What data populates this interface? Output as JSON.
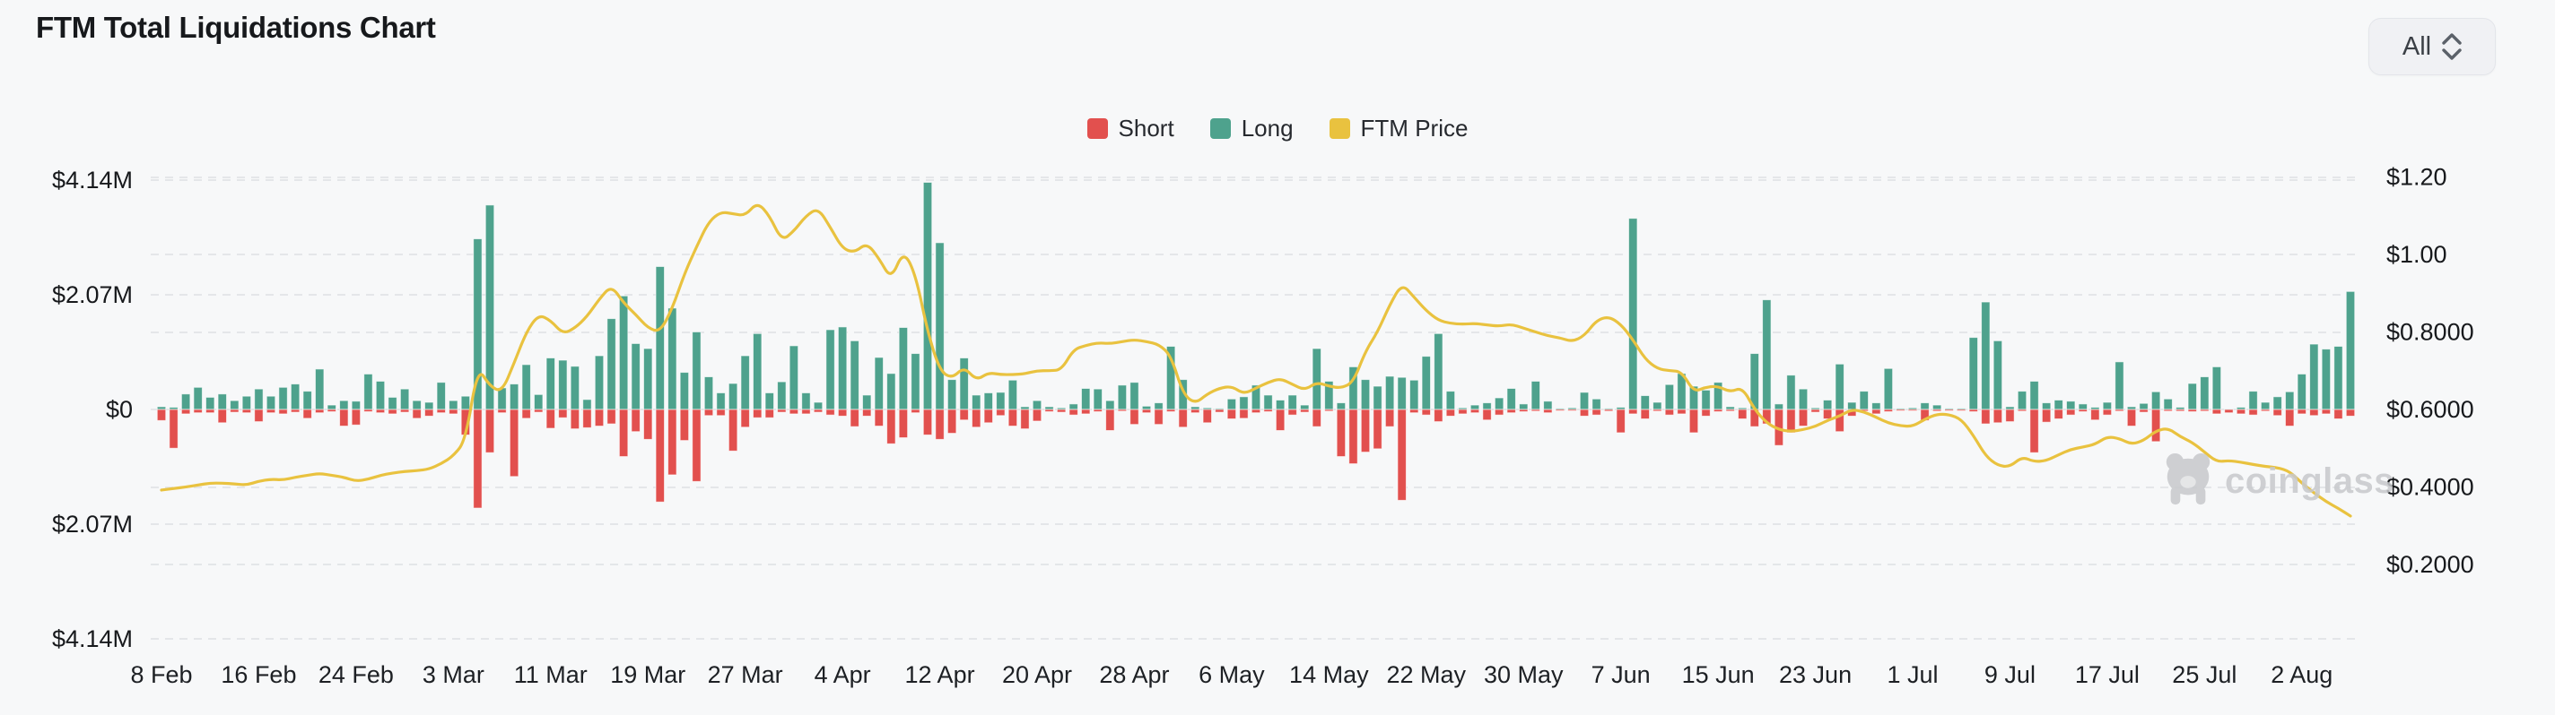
{
  "header": {
    "title": "FTM Total Liquidations Chart",
    "range_selector": {
      "value": "All"
    }
  },
  "legend": [
    {
      "label": "Short",
      "color": "#e2504e"
    },
    {
      "label": "Long",
      "color": "#4ea28d"
    },
    {
      "label": "FTM Price",
      "color": "#e9c23f"
    }
  ],
  "watermark": {
    "text": "coinglass"
  },
  "chart_data": {
    "type": "bar+line",
    "title": "FTM Total Liquidations Chart",
    "x_tick_labels": [
      "8 Feb",
      "16 Feb",
      "24 Feb",
      "3 Mar",
      "11 Mar",
      "19 Mar",
      "27 Mar",
      "4 Apr",
      "12 Apr",
      "20 Apr",
      "28 Apr",
      "6 May",
      "14 May",
      "22 May",
      "30 May",
      "7 Jun",
      "15 Jun",
      "23 Jun",
      "1 Jul",
      "9 Jul",
      "17 Jul",
      "25 Jul",
      "2 Aug"
    ],
    "x_tick_every": 8,
    "left_axis": {
      "unit": "USD liquidations",
      "ticks": [
        {
          "label": "$4.14M",
          "value": 4.14
        },
        {
          "label": "$2.07M",
          "value": 2.07
        },
        {
          "label": "$0",
          "value": 0
        },
        {
          "label": "$2.07M",
          "value": -2.07
        },
        {
          "label": "$4.14M",
          "value": -4.14
        }
      ]
    },
    "right_axis": {
      "unit": "FTM price USD",
      "ticks": [
        {
          "label": "$1.20",
          "value": 1.2
        },
        {
          "label": "$1.00",
          "value": 1.0
        },
        {
          "label": "$0.8000",
          "value": 0.8
        },
        {
          "label": "$0.6000",
          "value": 0.6
        },
        {
          "label": "$0.4000",
          "value": 0.4
        },
        {
          "label": "$0.2000",
          "value": 0.2
        }
      ]
    },
    "grid": "dashed horizontal",
    "legend_position": "top-center",
    "series": [
      {
        "name": "Long",
        "type": "bar",
        "direction": "up",
        "color": "#4ea28d",
        "unit": "$M",
        "values": [
          0.05,
          0.04,
          0.28,
          0.4,
          0.22,
          0.28,
          0.16,
          0.24,
          0.37,
          0.24,
          0.4,
          0.46,
          0.33,
          0.73,
          0.08,
          0.16,
          0.15,
          0.64,
          0.51,
          0.22,
          0.37,
          0.16,
          0.13,
          0.49,
          0.16,
          0.24,
          3.08,
          3.69,
          0.39,
          0.46,
          0.81,
          0.27,
          0.93,
          0.89,
          0.78,
          0.18,
          0.97,
          1.64,
          2.05,
          1.19,
          1.1,
          2.58,
          1.83,
          0.67,
          1.4,
          0.59,
          0.3,
          0.47,
          0.97,
          1.37,
          0.3,
          0.5,
          1.15,
          0.3,
          0.13,
          1.44,
          1.49,
          1.24,
          0.26,
          0.94,
          0.65,
          1.48,
          1.01,
          4.1,
          3.01,
          0.54,
          0.93,
          0.26,
          0.3,
          0.31,
          0.53,
          0.05,
          0.16,
          0.05,
          0.03,
          0.1,
          0.38,
          0.37,
          0.16,
          0.44,
          0.49,
          0.06,
          0.12,
          1.14,
          0.54,
          0.05,
          0.03,
          0.02,
          0.19,
          0.23,
          0.44,
          0.26,
          0.17,
          0.26,
          0.08,
          1.1,
          0.51,
          0.12,
          0.77,
          0.54,
          0.42,
          0.6,
          0.58,
          0.53,
          0.96,
          1.37,
          0.33,
          0.03,
          0.08,
          0.12,
          0.21,
          0.38,
          0.1,
          0.51,
          0.15,
          0.02,
          0.03,
          0.31,
          0.19,
          0.02,
          0.04,
          3.45,
          0.25,
          0.13,
          0.45,
          0.65,
          0.42,
          0.35,
          0.49,
          0.05,
          0.03,
          1.01,
          1.98,
          0.1,
          0.62,
          0.37,
          0.03,
          0.17,
          0.82,
          0.13,
          0.33,
          0.12,
          0.74,
          0.02,
          0.03,
          0.12,
          0.08,
          0.02,
          0.02,
          1.3,
          1.94,
          1.24,
          0.05,
          0.33,
          0.51,
          0.12,
          0.17,
          0.15,
          0.1,
          0.04,
          0.13,
          0.86,
          0.05,
          0.11,
          0.32,
          0.19,
          0.04,
          0.47,
          0.59,
          0.77,
          0.01,
          0.04,
          0.33,
          0.13,
          0.23,
          0.32,
          0.64,
          1.18,
          1.09,
          1.14,
          2.13
        ]
      },
      {
        "name": "Short",
        "type": "bar",
        "direction": "down",
        "color": "#e2504e",
        "unit": "$M",
        "values": [
          0.2,
          0.7,
          0.08,
          0.06,
          0.06,
          0.24,
          0.05,
          0.06,
          0.22,
          0.06,
          0.08,
          0.05,
          0.16,
          0.06,
          0.04,
          0.3,
          0.28,
          0.04,
          0.06,
          0.08,
          0.05,
          0.16,
          0.12,
          0.06,
          0.08,
          0.46,
          1.78,
          0.78,
          0.06,
          1.21,
          0.16,
          0.05,
          0.34,
          0.15,
          0.35,
          0.33,
          0.3,
          0.26,
          0.85,
          0.4,
          0.54,
          1.67,
          1.18,
          0.56,
          1.3,
          0.11,
          0.11,
          0.75,
          0.32,
          0.15,
          0.15,
          0.05,
          0.08,
          0.08,
          0.05,
          0.1,
          0.12,
          0.31,
          0.12,
          0.3,
          0.62,
          0.51,
          0.06,
          0.46,
          0.54,
          0.43,
          0.19,
          0.32,
          0.24,
          0.11,
          0.3,
          0.35,
          0.21,
          0.04,
          0.05,
          0.1,
          0.08,
          0.04,
          0.38,
          0.03,
          0.27,
          0.06,
          0.27,
          0.04,
          0.32,
          0.06,
          0.24,
          0.05,
          0.17,
          0.16,
          0.06,
          0.04,
          0.38,
          0.1,
          0.05,
          0.31,
          0.03,
          0.85,
          0.98,
          0.77,
          0.71,
          0.31,
          1.64,
          0.06,
          0.1,
          0.22,
          0.12,
          0.08,
          0.06,
          0.19,
          0.1,
          0.06,
          0.04,
          0.03,
          0.06,
          0.02,
          0.02,
          0.12,
          0.1,
          0.03,
          0.42,
          0.08,
          0.17,
          0.03,
          0.1,
          0.08,
          0.42,
          0.12,
          0.04,
          0.03,
          0.17,
          0.31,
          0.26,
          0.65,
          0.42,
          0.3,
          0.05,
          0.17,
          0.4,
          0.12,
          0.03,
          0.08,
          0.04,
          0.02,
          0.02,
          0.2,
          0.03,
          0.02,
          0.02,
          0.04,
          0.26,
          0.24,
          0.22,
          0.03,
          0.78,
          0.23,
          0.17,
          0.1,
          0.04,
          0.19,
          0.1,
          0.03,
          0.3,
          0.05,
          0.58,
          0.03,
          0.03,
          0.04,
          0.03,
          0.08,
          0.06,
          0.08,
          0.1,
          0.03,
          0.11,
          0.3,
          0.08,
          0.11,
          0.08,
          0.17,
          0.12
        ]
      },
      {
        "name": "FTM Price",
        "type": "line",
        "axis": "right",
        "color": "#e9c23f",
        "unit": "USD",
        "values": [
          0.392,
          0.396,
          0.4,
          0.405,
          0.41,
          0.41,
          0.408,
          0.405,
          0.415,
          0.42,
          0.418,
          0.425,
          0.43,
          0.435,
          0.43,
          0.425,
          0.415,
          0.42,
          0.43,
          0.436,
          0.44,
          0.442,
          0.446,
          0.46,
          0.48,
          0.52,
          0.71,
          0.66,
          0.645,
          0.72,
          0.8,
          0.845,
          0.83,
          0.795,
          0.81,
          0.84,
          0.885,
          0.92,
          0.875,
          0.845,
          0.81,
          0.8,
          0.86,
          0.95,
          1.02,
          1.085,
          1.11,
          1.105,
          1.1,
          1.135,
          1.1,
          1.035,
          1.06,
          1.1,
          1.12,
          1.07,
          1.015,
          1.005,
          1.03,
          0.99,
          0.935,
          1.01,
          0.95,
          0.8,
          0.7,
          0.68,
          0.71,
          0.675,
          0.695,
          0.69,
          0.69,
          0.692,
          0.7,
          0.7,
          0.702,
          0.755,
          0.765,
          0.772,
          0.77,
          0.775,
          0.78,
          0.775,
          0.768,
          0.74,
          0.64,
          0.615,
          0.64,
          0.655,
          0.66,
          0.64,
          0.655,
          0.67,
          0.68,
          0.665,
          0.65,
          0.67,
          0.66,
          0.655,
          0.67,
          0.75,
          0.8,
          0.87,
          0.925,
          0.89,
          0.855,
          0.83,
          0.822,
          0.82,
          0.822,
          0.818,
          0.815,
          0.82,
          0.81,
          0.8,
          0.79,
          0.785,
          0.775,
          0.79,
          0.83,
          0.84,
          0.82,
          0.78,
          0.73,
          0.705,
          0.7,
          0.698,
          0.645,
          0.658,
          0.66,
          0.645,
          0.657,
          0.6,
          0.565,
          0.548,
          0.543,
          0.548,
          0.556,
          0.572,
          0.583,
          0.6,
          0.594,
          0.58,
          0.565,
          0.558,
          0.556,
          0.575,
          0.588,
          0.587,
          0.575,
          0.533,
          0.48,
          0.455,
          0.452,
          0.478,
          0.465,
          0.468,
          0.483,
          0.497,
          0.503,
          0.51,
          0.53,
          0.525,
          0.51,
          0.52,
          0.545,
          0.552,
          0.53,
          0.515,
          0.49,
          0.465,
          0.468,
          0.464,
          0.458,
          0.453,
          0.45,
          0.44,
          0.41,
          0.385,
          0.362,
          0.345,
          0.325
        ]
      }
    ]
  }
}
